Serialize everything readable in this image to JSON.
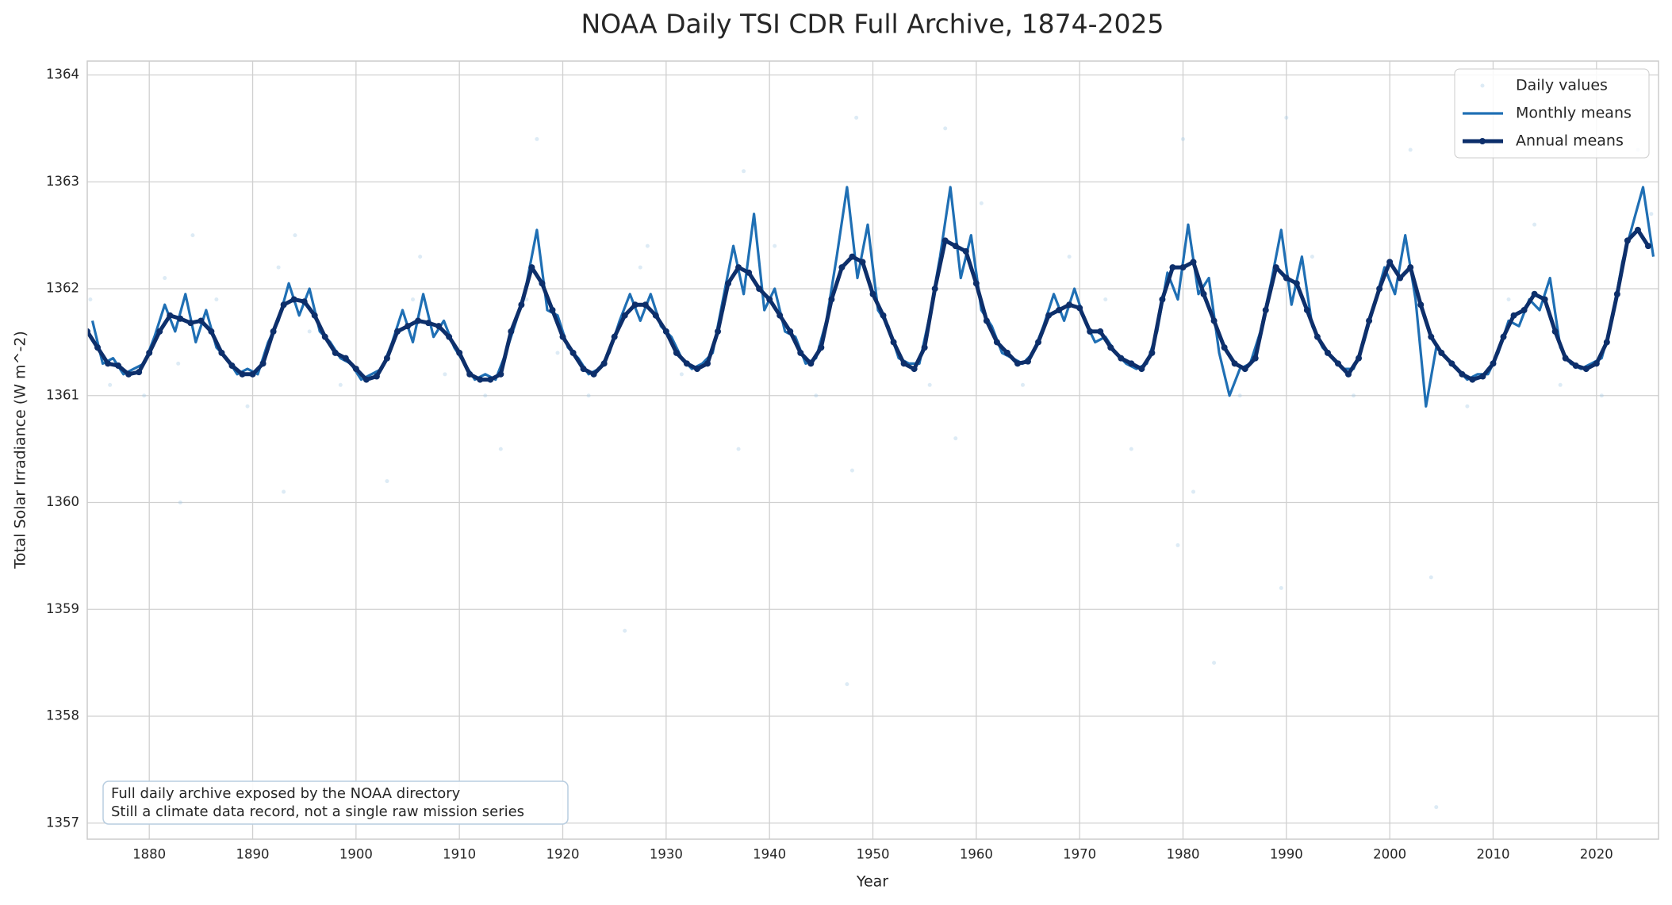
{
  "chart_data": {
    "type": "line",
    "title": "NOAA Daily TSI CDR Full Archive, 1874-2025",
    "x_label": "Year",
    "y_label": "Total Solar Irradiance (W m^-2)",
    "annotation": [
      "Full daily archive exposed by the NOAA directory",
      "Still a climate data record, not a single raw mission series"
    ],
    "xlim": [
      1874,
      2026
    ],
    "ylim": [
      1356.85,
      1364.13
    ],
    "xticks": [
      1880,
      1890,
      1900,
      1910,
      1920,
      1930,
      1940,
      1950,
      1960,
      1970,
      1980,
      1990,
      2000,
      2010,
      2020
    ],
    "yticks": [
      1357,
      1358,
      1359,
      1360,
      1361,
      1362,
      1363,
      1364
    ],
    "grid": true,
    "legend": "upper right",
    "series": [
      {
        "name": "Daily values",
        "color": "#9fc5e3",
        "style": "markers",
        "x": [
          1874.3,
          1876.2,
          1879.5,
          1881.5,
          1882.8,
          1883,
          1884.2,
          1886.5,
          1889.5,
          1892.5,
          1893,
          1894.1,
          1895.5,
          1898.5,
          1903,
          1905.5,
          1906.2,
          1908.6,
          1912.5,
          1914,
          1916.5,
          1917.5,
          1919.5,
          1922.5,
          1926,
          1927.5,
          1928.2,
          1931.5,
          1935.5,
          1937,
          1937.5,
          1940.5,
          1944.5,
          1947.5,
          1948,
          1948.4,
          1950.5,
          1955.5,
          1957,
          1958,
          1960.5,
          1964.5,
          1969,
          1972.5,
          1975,
          1979.5,
          1980,
          1981,
          1983,
          1985.5,
          1989.5,
          1990,
          1992.5,
          1996.5,
          2002,
          2004,
          2004.5,
          2007.5,
          2011.5,
          2014,
          2016.5,
          2020.5,
          2024,
          2025.3
        ],
        "values": [
          1361.9,
          1361.1,
          1361.0,
          1362.1,
          1361.3,
          1360.0,
          1362.5,
          1361.9,
          1360.9,
          1362.2,
          1360.1,
          1362.5,
          1361.6,
          1361.1,
          1360.2,
          1361.9,
          1362.3,
          1361.2,
          1361.0,
          1360.5,
          1361.9,
          1363.4,
          1361.4,
          1361.0,
          1358.8,
          1362.2,
          1362.4,
          1361.2,
          1361.8,
          1360.5,
          1363.1,
          1362.4,
          1361.0,
          1358.3,
          1360.3,
          1363.6,
          1362.0,
          1361.1,
          1363.5,
          1360.6,
          1362.8,
          1361.1,
          1362.3,
          1361.9,
          1360.5,
          1359.6,
          1363.4,
          1360.1,
          1358.5,
          1361.0,
          1359.2,
          1363.6,
          1362.3,
          1361.0,
          1363.3,
          1359.3,
          1357.15,
          1360.9,
          1361.9,
          1362.6,
          1361.1,
          1361.0,
          1363.3,
          1362.7
        ]
      },
      {
        "name": "Monthly means",
        "color": "#1f6fb4",
        "style": "line",
        "x": [
          1874.5,
          1875.5,
          1876.5,
          1877.5,
          1878.5,
          1879.5,
          1880.5,
          1881.5,
          1882.5,
          1883.5,
          1884.5,
          1885.5,
          1886.5,
          1887.5,
          1888.5,
          1889.5,
          1890.5,
          1891.5,
          1892.5,
          1893.5,
          1894.5,
          1895.5,
          1896.5,
          1897.5,
          1898.5,
          1899.5,
          1900.5,
          1901.5,
          1902.5,
          1903.5,
          1904.5,
          1905.5,
          1906.5,
          1907.5,
          1908.5,
          1909.5,
          1910.5,
          1911.5,
          1912.5,
          1913.5,
          1914.5,
          1915.5,
          1916.5,
          1917.5,
          1918.5,
          1919.5,
          1920.5,
          1921.5,
          1922.5,
          1923.5,
          1924.5,
          1925.5,
          1926.5,
          1927.5,
          1928.5,
          1929.5,
          1930.5,
          1931.5,
          1932.5,
          1933.5,
          1934.5,
          1935.5,
          1936.5,
          1937.5,
          1938.5,
          1939.5,
          1940.5,
          1941.5,
          1942.5,
          1943.5,
          1944.5,
          1945.5,
          1946.5,
          1947.5,
          1948.5,
          1949.5,
          1950.5,
          1951.5,
          1952.5,
          1953.5,
          1954.5,
          1955.5,
          1956.5,
          1957.5,
          1958.5,
          1959.5,
          1960.5,
          1961.5,
          1962.5,
          1963.5,
          1964.5,
          1965.5,
          1966.5,
          1967.5,
          1968.5,
          1969.5,
          1970.5,
          1971.5,
          1972.5,
          1973.5,
          1974.5,
          1975.5,
          1976.5,
          1977.5,
          1978.5,
          1979.5,
          1980.5,
          1981.5,
          1982.5,
          1983.5,
          1984.5,
          1985.5,
          1986.5,
          1987.5,
          1988.5,
          1989.5,
          1990.5,
          1991.5,
          1992.5,
          1993.5,
          1994.5,
          1995.5,
          1996.5,
          1997.5,
          1998.5,
          1999.5,
          2000.5,
          2001.5,
          2002.5,
          2003.5,
          2004.5,
          2005.5,
          2006.5,
          2007.5,
          2008.5,
          2009.5,
          2010.5,
          2011.5,
          2012.5,
          2013.5,
          2014.5,
          2015.5,
          2016.5,
          2017.5,
          2018.5,
          2019.5,
          2020.5,
          2021.5,
          2022.5,
          2023.5,
          2024.5,
          2025.5
        ],
        "values": [
          1361.7,
          1361.3,
          1361.35,
          1361.2,
          1361.25,
          1361.3,
          1361.55,
          1361.85,
          1361.6,
          1361.95,
          1361.5,
          1361.8,
          1361.45,
          1361.35,
          1361.2,
          1361.25,
          1361.2,
          1361.5,
          1361.7,
          1362.05,
          1361.75,
          1362.0,
          1361.6,
          1361.5,
          1361.35,
          1361.3,
          1361.15,
          1361.2,
          1361.25,
          1361.5,
          1361.8,
          1361.5,
          1361.95,
          1361.55,
          1361.7,
          1361.45,
          1361.3,
          1361.15,
          1361.2,
          1361.15,
          1361.4,
          1361.7,
          1362.05,
          1362.55,
          1361.8,
          1361.75,
          1361.45,
          1361.35,
          1361.2,
          1361.25,
          1361.4,
          1361.7,
          1361.95,
          1361.7,
          1361.95,
          1361.65,
          1361.55,
          1361.35,
          1361.25,
          1361.3,
          1361.4,
          1361.9,
          1362.4,
          1361.95,
          1362.7,
          1361.8,
          1362.0,
          1361.6,
          1361.55,
          1361.3,
          1361.35,
          1361.7,
          1362.3,
          1362.95,
          1362.1,
          1362.6,
          1361.8,
          1361.65,
          1361.35,
          1361.3,
          1361.3,
          1361.75,
          1362.3,
          1362.95,
          1362.1,
          1362.5,
          1361.8,
          1361.65,
          1361.4,
          1361.35,
          1361.3,
          1361.4,
          1361.65,
          1361.95,
          1361.7,
          1362.0,
          1361.7,
          1361.5,
          1361.55,
          1361.4,
          1361.3,
          1361.25,
          1361.3,
          1361.6,
          1362.15,
          1361.9,
          1362.6,
          1361.95,
          1362.1,
          1361.4,
          1361.0,
          1361.25,
          1361.3,
          1361.6,
          1362.05,
          1362.55,
          1361.85,
          1362.3,
          1361.65,
          1361.45,
          1361.35,
          1361.25,
          1361.25,
          1361.5,
          1361.85,
          1362.2,
          1361.95,
          1362.5,
          1361.9,
          1360.9,
          1361.45,
          1361.35,
          1361.25,
          1361.15,
          1361.2,
          1361.2,
          1361.4,
          1361.7,
          1361.65,
          1361.9,
          1361.8,
          1362.1,
          1361.45,
          1361.3,
          1361.25,
          1361.3,
          1361.35,
          1361.7,
          1362.25,
          1362.6,
          1362.95,
          1362.3
        ]
      },
      {
        "name": "Annual means",
        "color": "#0d2f6b",
        "style": "line-markers",
        "x": [
          1874,
          1875,
          1876,
          1877,
          1878,
          1879,
          1880,
          1881,
          1882,
          1883,
          1884,
          1885,
          1886,
          1887,
          1888,
          1889,
          1890,
          1891,
          1892,
          1893,
          1894,
          1895,
          1896,
          1897,
          1898,
          1899,
          1900,
          1901,
          1902,
          1903,
          1904,
          1905,
          1906,
          1907,
          1908,
          1909,
          1910,
          1911,
          1912,
          1913,
          1914,
          1915,
          1916,
          1917,
          1918,
          1919,
          1920,
          1921,
          1922,
          1923,
          1924,
          1925,
          1926,
          1927,
          1928,
          1929,
          1930,
          1931,
          1932,
          1933,
          1934,
          1935,
          1936,
          1937,
          1938,
          1939,
          1940,
          1941,
          1942,
          1943,
          1944,
          1945,
          1946,
          1947,
          1948,
          1949,
          1950,
          1951,
          1952,
          1953,
          1954,
          1955,
          1956,
          1957,
          1958,
          1959,
          1960,
          1961,
          1962,
          1963,
          1964,
          1965,
          1966,
          1967,
          1968,
          1969,
          1970,
          1971,
          1972,
          1973,
          1974,
          1975,
          1976,
          1977,
          1978,
          1979,
          1980,
          1981,
          1982,
          1983,
          1984,
          1985,
          1986,
          1987,
          1988,
          1989,
          1990,
          1991,
          1992,
          1993,
          1994,
          1995,
          1996,
          1997,
          1998,
          1999,
          2000,
          2001,
          2002,
          2003,
          2004,
          2005,
          2006,
          2007,
          2008,
          2009,
          2010,
          2011,
          2012,
          2013,
          2014,
          2015,
          2016,
          2017,
          2018,
          2019,
          2020,
          2021,
          2022,
          2023,
          2024,
          2025
        ],
        "values": [
          1361.6,
          1361.45,
          1361.3,
          1361.28,
          1361.2,
          1361.22,
          1361.4,
          1361.6,
          1361.75,
          1361.72,
          1361.68,
          1361.7,
          1361.6,
          1361.4,
          1361.28,
          1361.2,
          1361.2,
          1361.3,
          1361.6,
          1361.85,
          1361.9,
          1361.88,
          1361.75,
          1361.55,
          1361.4,
          1361.35,
          1361.25,
          1361.15,
          1361.18,
          1361.35,
          1361.6,
          1361.65,
          1361.7,
          1361.68,
          1361.65,
          1361.55,
          1361.4,
          1361.2,
          1361.15,
          1361.15,
          1361.2,
          1361.6,
          1361.85,
          1362.2,
          1362.05,
          1361.8,
          1361.55,
          1361.4,
          1361.25,
          1361.2,
          1361.3,
          1361.55,
          1361.75,
          1361.85,
          1361.85,
          1361.75,
          1361.6,
          1361.4,
          1361.3,
          1361.25,
          1361.3,
          1361.6,
          1362.05,
          1362.2,
          1362.15,
          1362.0,
          1361.9,
          1361.75,
          1361.6,
          1361.4,
          1361.3,
          1361.45,
          1361.9,
          1362.2,
          1362.3,
          1362.25,
          1361.95,
          1361.75,
          1361.5,
          1361.3,
          1361.25,
          1361.45,
          1362.0,
          1362.45,
          1362.4,
          1362.35,
          1362.05,
          1361.7,
          1361.5,
          1361.4,
          1361.3,
          1361.32,
          1361.5,
          1361.75,
          1361.8,
          1361.85,
          1361.82,
          1361.6,
          1361.6,
          1361.45,
          1361.35,
          1361.3,
          1361.25,
          1361.4,
          1361.9,
          1362.2,
          1362.2,
          1362.25,
          1361.95,
          1361.7,
          1361.45,
          1361.3,
          1361.25,
          1361.35,
          1361.8,
          1362.2,
          1362.1,
          1362.05,
          1361.8,
          1361.55,
          1361.4,
          1361.3,
          1361.2,
          1361.35,
          1361.7,
          1362.0,
          1362.25,
          1362.1,
          1362.2,
          1361.85,
          1361.55,
          1361.4,
          1361.3,
          1361.2,
          1361.15,
          1361.18,
          1361.3,
          1361.55,
          1361.75,
          1361.8,
          1361.95,
          1361.9,
          1361.6,
          1361.35,
          1361.28,
          1361.25,
          1361.3,
          1361.5,
          1361.95,
          1362.45,
          1362.55,
          1362.4
        ]
      }
    ]
  }
}
